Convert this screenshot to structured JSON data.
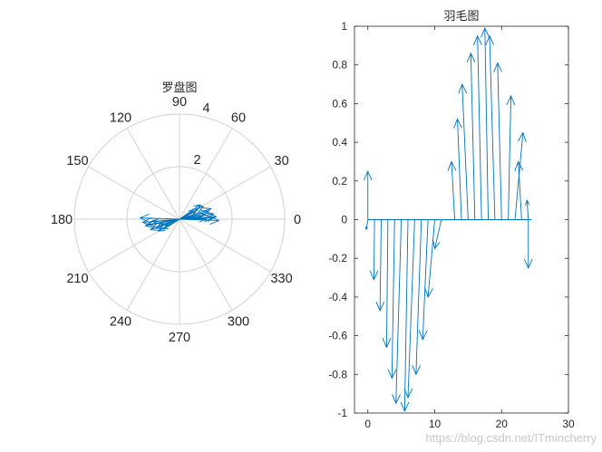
{
  "chart_data": [
    {
      "type": "compass",
      "title": "罗盘图",
      "r_ticks": [
        "2",
        "4"
      ],
      "theta_ticks": [
        "0",
        "30",
        "60",
        "90",
        "120",
        "150",
        "180",
        "210",
        "240",
        "270",
        "300",
        "330"
      ],
      "rlim": [
        0,
        4
      ],
      "grid": true,
      "arrows": [
        {
          "u": 1.0,
          "v": 0.0
        },
        {
          "u": 1.4,
          "v": 0.1
        },
        {
          "u": 0.9,
          "v": 0.5
        },
        {
          "u": 1.2,
          "v": 0.4
        },
        {
          "u": 1.3,
          "v": 0.2
        },
        {
          "u": 0.7,
          "v": 0.4
        },
        {
          "u": 1.1,
          "v": 0.3
        },
        {
          "u": 0.8,
          "v": 0.55
        },
        {
          "u": 0.5,
          "v": 0.35
        },
        {
          "u": 1.25,
          "v": 0.05
        },
        {
          "u": 0.95,
          "v": 0.2
        },
        {
          "u": 0.6,
          "v": 0.28
        },
        {
          "u": 0.3,
          "v": 0.15
        },
        {
          "u": 0.8,
          "v": 0.08
        },
        {
          "u": 1.5,
          "v": -0.05
        },
        {
          "u": 0.4,
          "v": 0.05
        },
        {
          "u": 0.2,
          "v": 0.05
        },
        {
          "u": -1.5,
          "v": 0.05
        },
        {
          "u": -1.2,
          "v": -0.2
        },
        {
          "u": -0.9,
          "v": -0.35
        },
        {
          "u": -1.1,
          "v": -0.4
        },
        {
          "u": -0.8,
          "v": -0.45
        },
        {
          "u": -1.3,
          "v": -0.25
        },
        {
          "u": -0.6,
          "v": -0.38
        },
        {
          "u": -1.0,
          "v": -0.1
        },
        {
          "u": -0.7,
          "v": -0.2
        },
        {
          "u": -1.4,
          "v": -0.12
        },
        {
          "u": -0.5,
          "v": -0.25
        },
        {
          "u": -0.3,
          "v": -0.12
        },
        {
          "u": -0.85,
          "v": -0.3
        }
      ]
    },
    {
      "type": "feather",
      "title": "羽毛图",
      "xlim": [
        -2,
        30
      ],
      "ylim": [
        -1,
        1
      ],
      "xticks": [
        "0",
        "10",
        "20",
        "30"
      ],
      "yticks": [
        "-1",
        "-0.8",
        "-0.6",
        "-0.4",
        "-0.2",
        "0",
        "0.2",
        "0.4",
        "0.6",
        "0.8",
        "1"
      ],
      "grid": false,
      "arrows": [
        {
          "x": 0,
          "u": 0.0,
          "v": 0.25
        },
        {
          "x": 0,
          "u": -0.25,
          "v": -0.05
        },
        {
          "x": 1,
          "u": -0.1,
          "v": -0.31
        },
        {
          "x": 2,
          "u": -0.18,
          "v": -0.47
        },
        {
          "x": 3,
          "u": -0.2,
          "v": -0.66
        },
        {
          "x": 4,
          "u": -0.4,
          "v": -0.82
        },
        {
          "x": 5,
          "u": -0.8,
          "v": -0.95
        },
        {
          "x": 6,
          "u": -0.5,
          "v": -0.99
        },
        {
          "x": 7,
          "u": -1.0,
          "v": -0.92
        },
        {
          "x": 8,
          "u": -0.8,
          "v": -0.8
        },
        {
          "x": 9,
          "u": -0.8,
          "v": -0.62
        },
        {
          "x": 10,
          "u": -1.0,
          "v": -0.4
        },
        {
          "x": 11,
          "u": -1.0,
          "v": -0.15
        },
        {
          "x": 12,
          "u": 0.0,
          "v": 0.0
        },
        {
          "x": 13,
          "u": -0.5,
          "v": 0.3
        },
        {
          "x": 14,
          "u": -0.6,
          "v": 0.52
        },
        {
          "x": 15,
          "u": -0.9,
          "v": 0.7
        },
        {
          "x": 16,
          "u": -0.6,
          "v": 0.86
        },
        {
          "x": 17,
          "u": -0.6,
          "v": 0.95
        },
        {
          "x": 18,
          "u": -0.5,
          "v": 0.99
        },
        {
          "x": 19,
          "u": -0.8,
          "v": 0.95
        },
        {
          "x": 20,
          "u": -0.6,
          "v": 0.81
        },
        {
          "x": 21,
          "u": 0.4,
          "v": 0.64
        },
        {
          "x": 22,
          "u": 1.2,
          "v": 0.45
        },
        {
          "x": 23,
          "u": -0.5,
          "v": 0.3
        },
        {
          "x": 24,
          "u": 0.0,
          "v": -0.25
        },
        {
          "x": 24,
          "u": -0.2,
          "v": 0.1
        }
      ]
    }
  ],
  "watermark": "https://blog.csdn.net/ITmincherry",
  "colors": {
    "line": "#0072BD",
    "grid": "#d9d9d9",
    "text": "#262626"
  }
}
